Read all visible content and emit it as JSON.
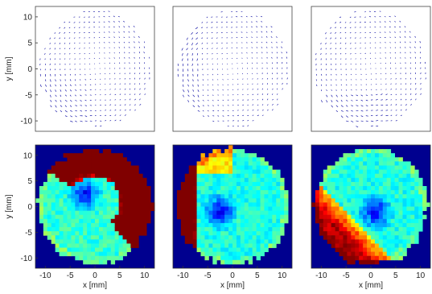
{
  "chart_data": {
    "type": "heatmap",
    "layout": "2 rows x 3 columns",
    "top_row_type": "quiver",
    "bottom_row_type": "heatmap",
    "xlabel": "x [mm]",
    "ylabel": "y [mm]",
    "xlim": [
      -12,
      12
    ],
    "ylim": [
      -12,
      12
    ],
    "x_ticks": [
      "-10",
      "-5",
      "0",
      "5",
      "10"
    ],
    "y_ticks": [
      "10",
      "5",
      "0",
      "-5",
      "-10"
    ],
    "grid": false,
    "colormap": "jet",
    "arrow_color": "#1a1aa8",
    "background_color": "#00008f",
    "panels": [
      {
        "row": 1,
        "col": 1,
        "kind": "vector field",
        "pattern": "rotational flow, strongest in lower-left"
      },
      {
        "row": 1,
        "col": 2,
        "kind": "vector field",
        "pattern": "rotational flow, strongest at left edge"
      },
      {
        "row": 1,
        "col": 3,
        "kind": "vector field",
        "pattern": "rotational flow, strongest at bottom-left"
      },
      {
        "row": 2,
        "col": 1,
        "kind": "magnitude map",
        "low_center": [
          -2,
          2
        ],
        "high_region": "upper-right arc"
      },
      {
        "row": 2,
        "col": 2,
        "kind": "magnitude map",
        "low_center": [
          -2,
          -1
        ],
        "high_region": "left edge"
      },
      {
        "row": 2,
        "col": 3,
        "kind": "magnitude map",
        "low_center": [
          1,
          -1
        ],
        "high_region": "bottom-left"
      }
    ]
  }
}
